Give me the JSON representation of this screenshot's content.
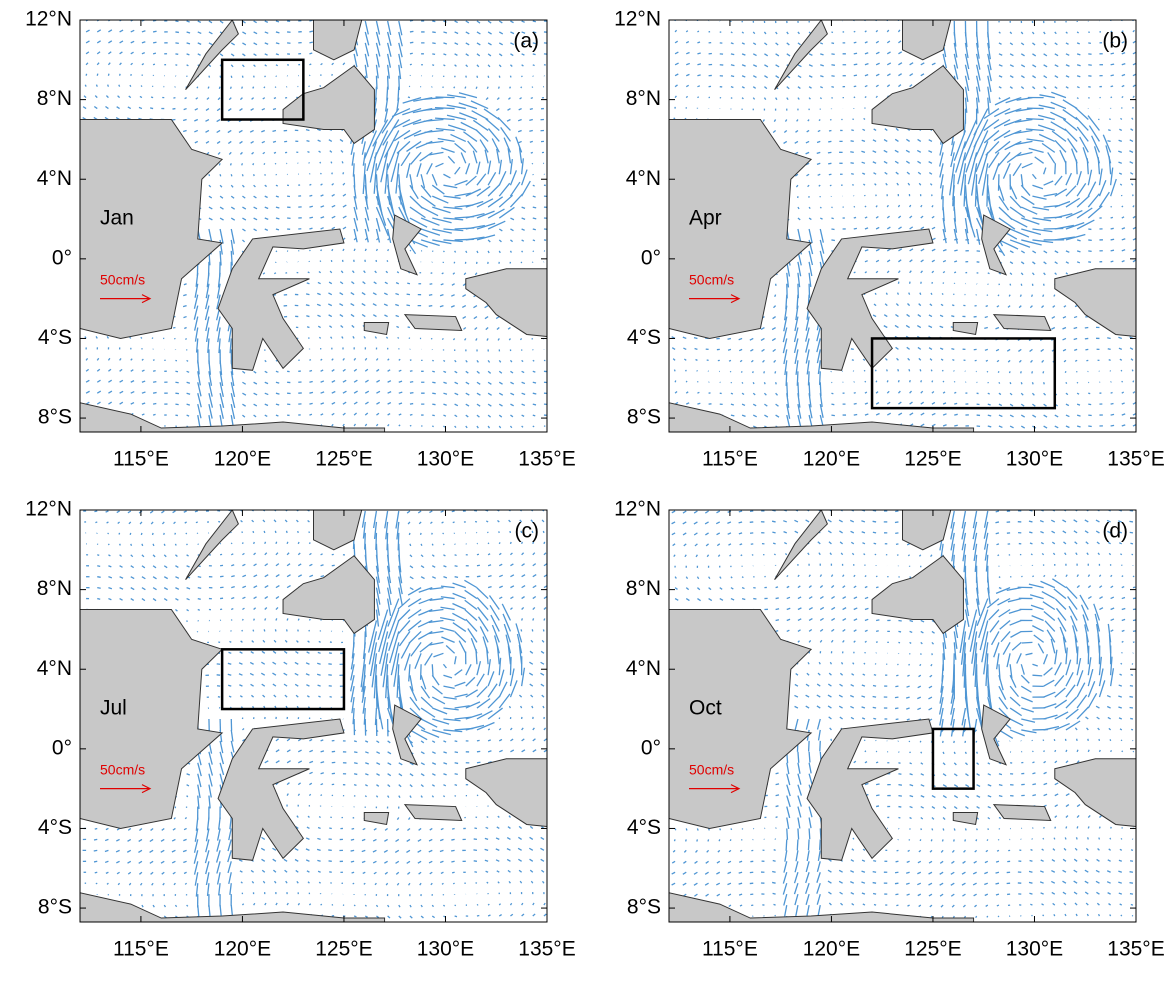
{
  "panels": [
    {
      "label": "(a)",
      "month": "Jan",
      "scale_label": "50cm/s",
      "box": {
        "lon": [
          119,
          123
        ],
        "lat": [
          7,
          10
        ]
      }
    },
    {
      "label": "(b)",
      "month": "Apr",
      "scale_label": "50cm/s",
      "box": {
        "lon": [
          122,
          131
        ],
        "lat": [
          -7.5,
          -4
        ]
      }
    },
    {
      "label": "(c)",
      "month": "Jul",
      "scale_label": "50cm/s",
      "box": {
        "lon": [
          119,
          125
        ],
        "lat": [
          2,
          5
        ]
      }
    },
    {
      "label": "(d)",
      "month": "Oct",
      "scale_label": "50cm/s",
      "box": {
        "lon": [
          125,
          127
        ],
        "lat": [
          -2,
          1
        ]
      }
    }
  ],
  "xlim": [
    112,
    135
  ],
  "ylim": [
    -8.7,
    12
  ],
  "xticks": [
    {
      "value": 115,
      "label": "115°E"
    },
    {
      "value": 120,
      "label": "120°E"
    },
    {
      "value": 125,
      "label": "125°E"
    },
    {
      "value": 130,
      "label": "130°E"
    },
    {
      "value": 135,
      "label": "135°E"
    }
  ],
  "yticks": [
    {
      "value": 12,
      "label": "12°N"
    },
    {
      "value": 8,
      "label": "8°N"
    },
    {
      "value": 4,
      "label": "4°N"
    },
    {
      "value": 0,
      "label": "0°"
    },
    {
      "value": -4,
      "label": "4°S"
    },
    {
      "value": -8,
      "label": "8°S"
    }
  ]
}
